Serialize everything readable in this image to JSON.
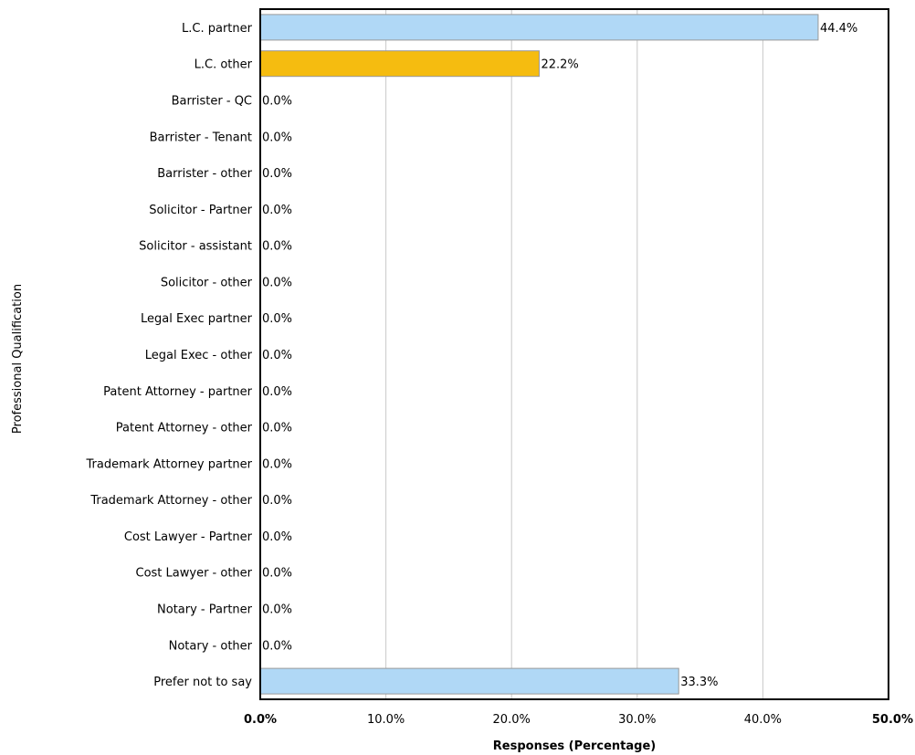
{
  "chart_data": {
    "type": "bar",
    "orientation": "horizontal",
    "categories": [
      "L.C. partner",
      "L.C. other",
      "Barrister - QC",
      "Barrister - Tenant",
      "Barrister - other",
      "Solicitor - Partner",
      "Solicitor - assistant",
      "Solicitor - other",
      "Legal Exec partner",
      "Legal Exec - other",
      "Patent Attorney - partner",
      "Patent Attorney - other",
      "Trademark Attorney partner",
      "Trademark Attorney - other",
      "Cost Lawyer - Partner",
      "Cost Lawyer - other",
      "Notary - Partner",
      "Notary - other",
      "Prefer not to say"
    ],
    "values": [
      44.4,
      22.2,
      0,
      0,
      0,
      0,
      0,
      0,
      0,
      0,
      0,
      0,
      0,
      0,
      0,
      0,
      0,
      0,
      33.3
    ],
    "value_labels": [
      "44.4%",
      "22.2%",
      "0.0%",
      "0.0%",
      "0.0%",
      "0.0%",
      "0.0%",
      "0.0%",
      "0.0%",
      "0.0%",
      "0.0%",
      "0.0%",
      "0.0%",
      "0.0%",
      "0.0%",
      "0.0%",
      "0.0%",
      "0.0%",
      "33.3%"
    ],
    "bar_colors": [
      "#b0d8f6",
      "#f5bc10",
      "#b0d8f6",
      "#b0d8f6",
      "#b0d8f6",
      "#b0d8f6",
      "#b0d8f6",
      "#b0d8f6",
      "#b0d8f6",
      "#b0d8f6",
      "#b0d8f6",
      "#b0d8f6",
      "#b0d8f6",
      "#b0d8f6",
      "#b0d8f6",
      "#b0d8f6",
      "#b0d8f6",
      "#b0d8f6",
      "#b0d8f6"
    ],
    "xlabel": "Responses (Percentage)",
    "ylabel": "Professional Qualification",
    "xlim": [
      0,
      50
    ],
    "xticks": [
      0,
      10,
      20,
      30,
      40,
      50
    ],
    "xtick_labels": [
      "0.0%",
      "10.0%",
      "20.0%",
      "30.0%",
      "40.0%",
      "50.0%"
    ],
    "grid": true,
    "colors": {
      "bar_default": "#b0d8f6",
      "bar_highlight": "#f5bc10",
      "bar_border": "#999999",
      "grid": "#c8c8c8",
      "axis": "#000000"
    }
  }
}
